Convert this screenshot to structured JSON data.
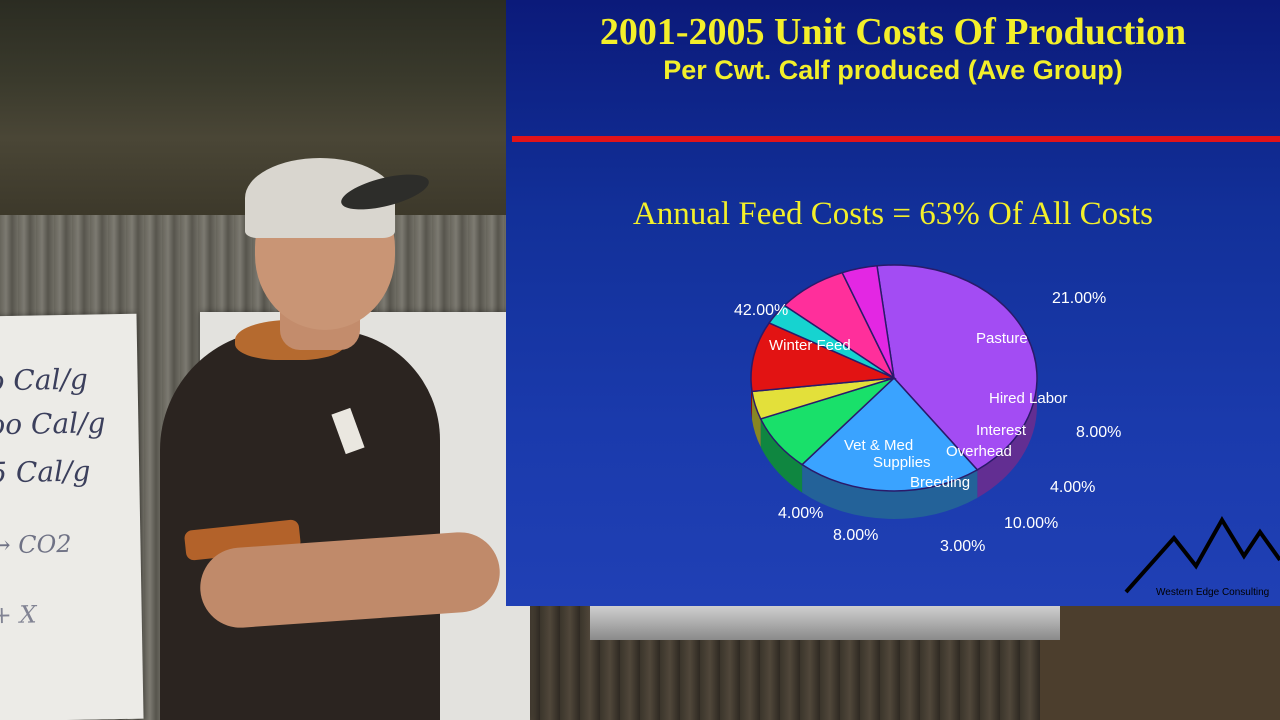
{
  "slide": {
    "title": "2001-2005 Unit Costs Of Production",
    "subtitle": "Per Cwt. Calf produced (Ave Group)",
    "heading": "Annual Feed Costs = 63% Of All Costs",
    "logo_text": "Western Edge Consulting",
    "colors": {
      "title": "#f3ef2a",
      "background": "#1230a0",
      "divider": "#e1131a"
    }
  },
  "flipchart": {
    "lines": [
      "o Cal/g",
      "oo Cal/g",
      "5 Cal/g",
      "→ CO2",
      "+ X"
    ]
  },
  "chart_data": {
    "type": "pie",
    "slices": [
      {
        "name": "Winter Feed",
        "value": 42.0,
        "label": "42.00%",
        "color": "#a34cf3"
      },
      {
        "name": "Pasture",
        "value": 21.0,
        "label": "21.00%",
        "color": "#3aa3ff"
      },
      {
        "name": "Hired Labor",
        "value": 8.0,
        "label": "8.00%",
        "color": "#19e06a"
      },
      {
        "name": "Interest",
        "value": 4.0,
        "label": "4.00%",
        "color": "#e3e03a"
      },
      {
        "name": "Overhead",
        "value": 10.0,
        "label": "10.00%",
        "color": "#e21313"
      },
      {
        "name": "Breeding",
        "value": 3.0,
        "label": "3.00%",
        "color": "#16d3d0"
      },
      {
        "name": "Supplies",
        "value": 8.0,
        "label": "8.00%",
        "color": "#ff2f9b"
      },
      {
        "name": "Vet & Med",
        "value": 4.0,
        "label": "4.00%",
        "color": "#e327e3"
      }
    ]
  }
}
